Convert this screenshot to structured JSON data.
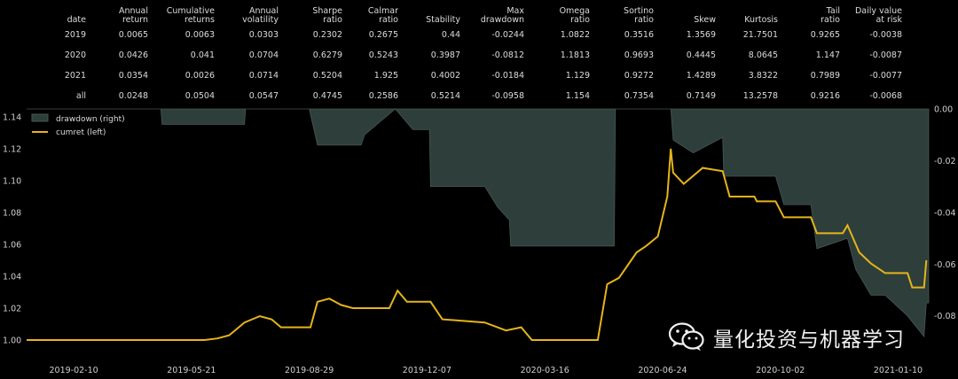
{
  "stats_table": {
    "headers": [
      [
        "date"
      ],
      [
        "Annual",
        "return"
      ],
      [
        "Cumulative",
        "returns"
      ],
      [
        "Annual",
        "volatility"
      ],
      [
        "Sharpe",
        "ratio"
      ],
      [
        "Calmar",
        "ratio"
      ],
      [
        "Stability"
      ],
      [
        "Max",
        "drawdown"
      ],
      [
        "Omega",
        "ratio"
      ],
      [
        "Sortino",
        "ratio"
      ],
      [
        "Skew"
      ],
      [
        "Kurtosis"
      ],
      [
        "Tail",
        "ratio"
      ],
      [
        "Daily value",
        "at risk"
      ]
    ],
    "rows": [
      [
        "2019",
        "0.0065",
        "0.0063",
        "0.0303",
        "0.2302",
        "0.2675",
        "0.44",
        "-0.0244",
        "1.0822",
        "0.3516",
        "1.3569",
        "21.7501",
        "0.9265",
        "-0.0038"
      ],
      [
        "2020",
        "0.0426",
        "0.041",
        "0.0704",
        "0.6279",
        "0.5243",
        "0.3987",
        "-0.0812",
        "1.1813",
        "0.9693",
        "0.4445",
        "8.0645",
        "1.147",
        "-0.0087"
      ],
      [
        "2021",
        "0.0354",
        "0.0026",
        "0.0714",
        "0.5204",
        "1.925",
        "0.4002",
        "-0.0184",
        "1.129",
        "0.9272",
        "1.4289",
        "3.8322",
        "0.7989",
        "-0.0077"
      ],
      [
        "all",
        "0.0248",
        "0.0504",
        "0.0547",
        "0.4745",
        "0.2586",
        "0.5214",
        "-0.0958",
        "1.154",
        "0.7354",
        "0.7149",
        "13.2578",
        "0.9216",
        "-0.0068"
      ]
    ]
  },
  "watermark": {
    "text": "量化投资与机器学习",
    "icon": "wechat-icon"
  },
  "chart_data": {
    "type": "line",
    "legend": {
      "placement": "top-left",
      "entries": [
        "drawdown (right)",
        "cumret (left)"
      ]
    },
    "colors": {
      "cumret": "#e5b41a",
      "drawdown": "#2e3f3b",
      "drawdown_edge": "#465752"
    },
    "x_tick_labels": [
      "2019-02-10",
      "2019-05-21",
      "2019-08-29",
      "2019-12-07",
      "2020-03-16",
      "2020-06-24",
      "2020-10-02",
      "2021-01-10"
    ],
    "x_range": [
      "2019-01-01",
      "2021-02-05"
    ],
    "left_axis": {
      "ylim": [
        0.99,
        1.145
      ],
      "ticks": [
        "1.00",
        "1.02",
        "1.04",
        "1.06",
        "1.08",
        "1.10",
        "1.12",
        "1.14"
      ]
    },
    "right_axis": {
      "ylim": [
        -0.0955,
        0.0
      ],
      "ticks": [
        "0.00",
        "-0.02",
        "-0.04",
        "-0.06",
        "-0.08"
      ]
    },
    "series": [
      {
        "name": "cumret (left)",
        "axis": "left",
        "points": [
          [
            "2019-01-01",
            1.0
          ],
          [
            "2019-04-25",
            1.0
          ],
          [
            "2019-06-01",
            1.0
          ],
          [
            "2019-06-12",
            1.001
          ],
          [
            "2019-06-22",
            1.003
          ],
          [
            "2019-07-05",
            1.011
          ],
          [
            "2019-07-18",
            1.015
          ],
          [
            "2019-07-28",
            1.013
          ],
          [
            "2019-08-05",
            1.008
          ],
          [
            "2019-08-30",
            1.008
          ],
          [
            "2019-09-05",
            1.024
          ],
          [
            "2019-09-15",
            1.026
          ],
          [
            "2019-09-25",
            1.022
          ],
          [
            "2019-10-05",
            1.02
          ],
          [
            "2019-11-05",
            1.02
          ],
          [
            "2019-11-12",
            1.031
          ],
          [
            "2019-11-20",
            1.024
          ],
          [
            "2019-12-10",
            1.024
          ],
          [
            "2019-12-20",
            1.013
          ],
          [
            "2020-01-25",
            1.011
          ],
          [
            "2020-02-12",
            1.006
          ],
          [
            "2020-02-25",
            1.008
          ],
          [
            "2020-03-05",
            1.0
          ],
          [
            "2020-04-30",
            1.0
          ],
          [
            "2020-05-08",
            1.035
          ],
          [
            "2020-05-18",
            1.039
          ],
          [
            "2020-06-02",
            1.055
          ],
          [
            "2020-06-10",
            1.059
          ],
          [
            "2020-06-20",
            1.065
          ],
          [
            "2020-06-28",
            1.09
          ],
          [
            "2020-07-01",
            1.12
          ],
          [
            "2020-07-03",
            1.105
          ],
          [
            "2020-07-12",
            1.098
          ],
          [
            "2020-07-28",
            1.108
          ],
          [
            "2020-08-14",
            1.106
          ],
          [
            "2020-08-20",
            1.09
          ],
          [
            "2020-09-10",
            1.09
          ],
          [
            "2020-09-12",
            1.087
          ],
          [
            "2020-09-28",
            1.087
          ],
          [
            "2020-10-05",
            1.077
          ],
          [
            "2020-10-28",
            1.077
          ],
          [
            "2020-11-02",
            1.067
          ],
          [
            "2020-11-24",
            1.067
          ],
          [
            "2020-11-28",
            1.072
          ],
          [
            "2020-12-08",
            1.055
          ],
          [
            "2020-12-18",
            1.048
          ],
          [
            "2020-12-30",
            1.042
          ],
          [
            "2021-01-18",
            1.042
          ],
          [
            "2021-01-22",
            1.033
          ],
          [
            "2021-02-01",
            1.033
          ],
          [
            "2021-02-03",
            1.05
          ]
        ]
      },
      {
        "name": "drawdown (right)",
        "axis": "right",
        "points": [
          [
            "2019-01-01",
            0.0
          ],
          [
            "2019-04-25",
            0.0
          ],
          [
            "2019-04-26",
            -0.006
          ],
          [
            "2019-07-05",
            -0.006
          ],
          [
            "2019-07-06",
            -0.0
          ],
          [
            "2019-08-29",
            -0.0
          ],
          [
            "2019-09-05",
            -0.014
          ],
          [
            "2019-10-12",
            -0.014
          ],
          [
            "2019-10-15",
            -0.01
          ],
          [
            "2019-11-10",
            -0.0
          ],
          [
            "2019-11-25",
            -0.008
          ],
          [
            "2019-12-09",
            -0.008
          ],
          [
            "2019-12-10",
            -0.03
          ],
          [
            "2020-01-25",
            -0.03
          ],
          [
            "2020-02-05",
            -0.038
          ],
          [
            "2020-02-15",
            -0.043
          ],
          [
            "2020-02-16",
            -0.053
          ],
          [
            "2020-05-14",
            -0.053
          ],
          [
            "2020-05-15",
            -0.0
          ],
          [
            "2020-06-28",
            -0.0
          ],
          [
            "2020-07-01",
            0.0
          ],
          [
            "2020-07-03",
            -0.012
          ],
          [
            "2020-07-20",
            -0.017
          ],
          [
            "2020-08-14",
            -0.011
          ],
          [
            "2020-08-15",
            -0.026
          ],
          [
            "2020-09-28",
            -0.026
          ],
          [
            "2020-10-05",
            -0.037
          ],
          [
            "2020-10-28",
            -0.037
          ],
          [
            "2020-11-02",
            -0.054
          ],
          [
            "2020-11-28",
            -0.05
          ],
          [
            "2020-12-05",
            -0.062
          ],
          [
            "2020-12-18",
            -0.072
          ],
          [
            "2020-12-30",
            -0.072
          ],
          [
            "2021-01-18",
            -0.08
          ],
          [
            "2021-02-01",
            -0.088
          ],
          [
            "2021-02-03",
            -0.075
          ],
          [
            "2021-02-05",
            -0.075
          ]
        ]
      }
    ]
  }
}
